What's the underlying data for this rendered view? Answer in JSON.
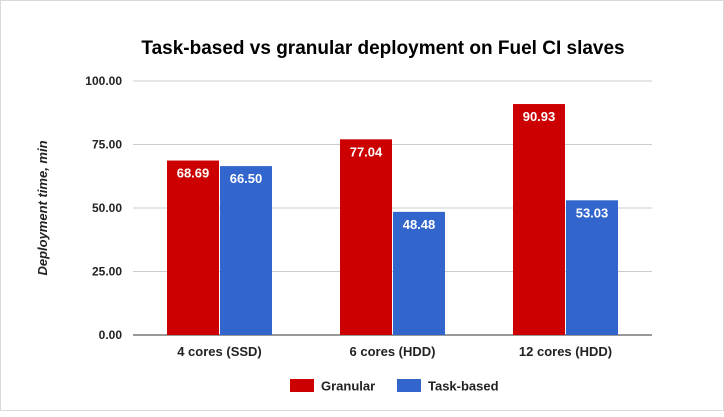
{
  "chart_data": {
    "type": "bar",
    "title": "Task-based vs granular deployment on Fuel CI slaves",
    "xlabel": "",
    "ylabel": "Deployment time, min",
    "categories": [
      "4 cores (SSD)",
      "6 cores (HDD)",
      "12 cores (HDD)"
    ],
    "series": [
      {
        "name": "Granular",
        "values": [
          68.69,
          77.04,
          90.93
        ],
        "color": "#cc0000"
      },
      {
        "name": "Task-based",
        "values": [
          66.5,
          48.48,
          53.03
        ],
        "color": "#3366cc"
      }
    ],
    "ylim": [
      0,
      100
    ],
    "yticks": [
      "0.00",
      "25.00",
      "50.00",
      "75.00",
      "100.00"
    ],
    "data_labels": [
      [
        "68.69",
        "77.04",
        "90.93"
      ],
      [
        "66.50",
        "48.48",
        "53.03"
      ]
    ],
    "grid": true,
    "legend_position": "bottom"
  }
}
